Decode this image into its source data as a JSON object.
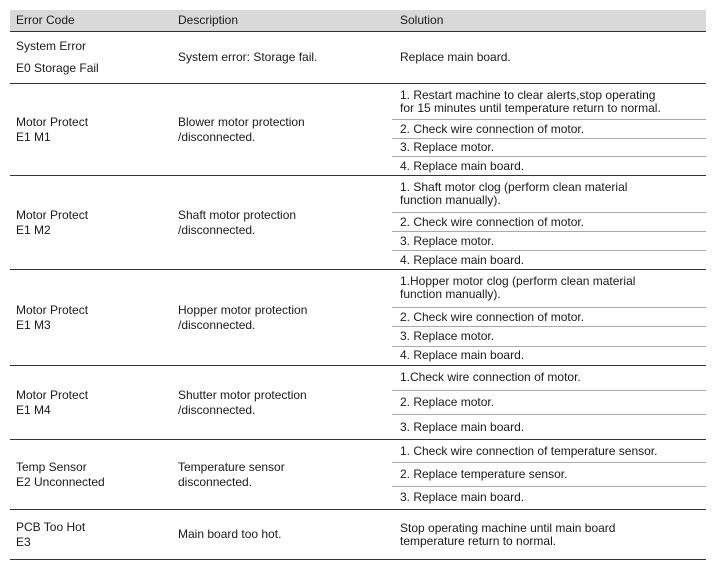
{
  "table": {
    "header": [
      "Error Code",
      "Description",
      "Solution"
    ],
    "rows": [
      {
        "code": [
          "System Error",
          "E0  Storage Fail"
        ],
        "description": [
          "System error: Storage fail."
        ],
        "solution": [
          [
            "Replace  main board."
          ]
        ]
      },
      {
        "code": [
          "Motor Protect",
          "E1 M1"
        ],
        "description": [
          "Blower motor protection",
          "/disconnected."
        ],
        "solution": [
          [
            "1. Restart machine to clear alerts,stop operating",
            "for 15 minutes until temperature return to normal."
          ],
          [
            "2. Check wire connection of motor."
          ],
          [
            "3. Replace motor."
          ],
          [
            "4. Replace main board."
          ]
        ]
      },
      {
        "code": [
          "Motor Protect",
          "E1 M2"
        ],
        "description": [
          "Shaft motor protection",
          "/disconnected."
        ],
        "solution": [
          [
            "1. Shaft motor clog (perform  clean material",
            "function manually)."
          ],
          [
            "2. Check wire connection of motor."
          ],
          [
            "3. Replace motor."
          ],
          [
            "4. Replace main board."
          ]
        ]
      },
      {
        "code": [
          "Motor Protect",
          "E1 M3"
        ],
        "description": [
          "Hopper motor protection",
          "/disconnected."
        ],
        "solution": [
          [
            "1.Hopper motor clog (perform  clean material",
            "function manually)."
          ],
          [
            "2. Check wire connection of motor."
          ],
          [
            "3. Replace motor."
          ],
          [
            "4. Replace main board."
          ]
        ]
      },
      {
        "code": [
          "Motor Protect",
          "E1 M4"
        ],
        "description": [
          "Shutter motor protection",
          "/disconnected."
        ],
        "solution": [
          [
            "1.Check wire connection of motor."
          ],
          [
            "2. Replace motor."
          ],
          [
            "3. Replace main board."
          ]
        ]
      },
      {
        "code": [
          "Temp Sensor",
          "E2  Unconnected"
        ],
        "description": [
          "Temperature sensor",
          "disconnected."
        ],
        "solution": [
          [
            "1. Check wire connection of temperature sensor."
          ],
          [
            "2. Replace temperature sensor."
          ],
          [
            "3. Replace main board."
          ]
        ]
      },
      {
        "code": [
          "PCB Too Hot",
          "E3"
        ],
        "description": [
          "Main board too hot."
        ],
        "solution": [
          [
            "Stop operating machine until main board",
            "temperature  return to normal."
          ]
        ]
      }
    ]
  }
}
